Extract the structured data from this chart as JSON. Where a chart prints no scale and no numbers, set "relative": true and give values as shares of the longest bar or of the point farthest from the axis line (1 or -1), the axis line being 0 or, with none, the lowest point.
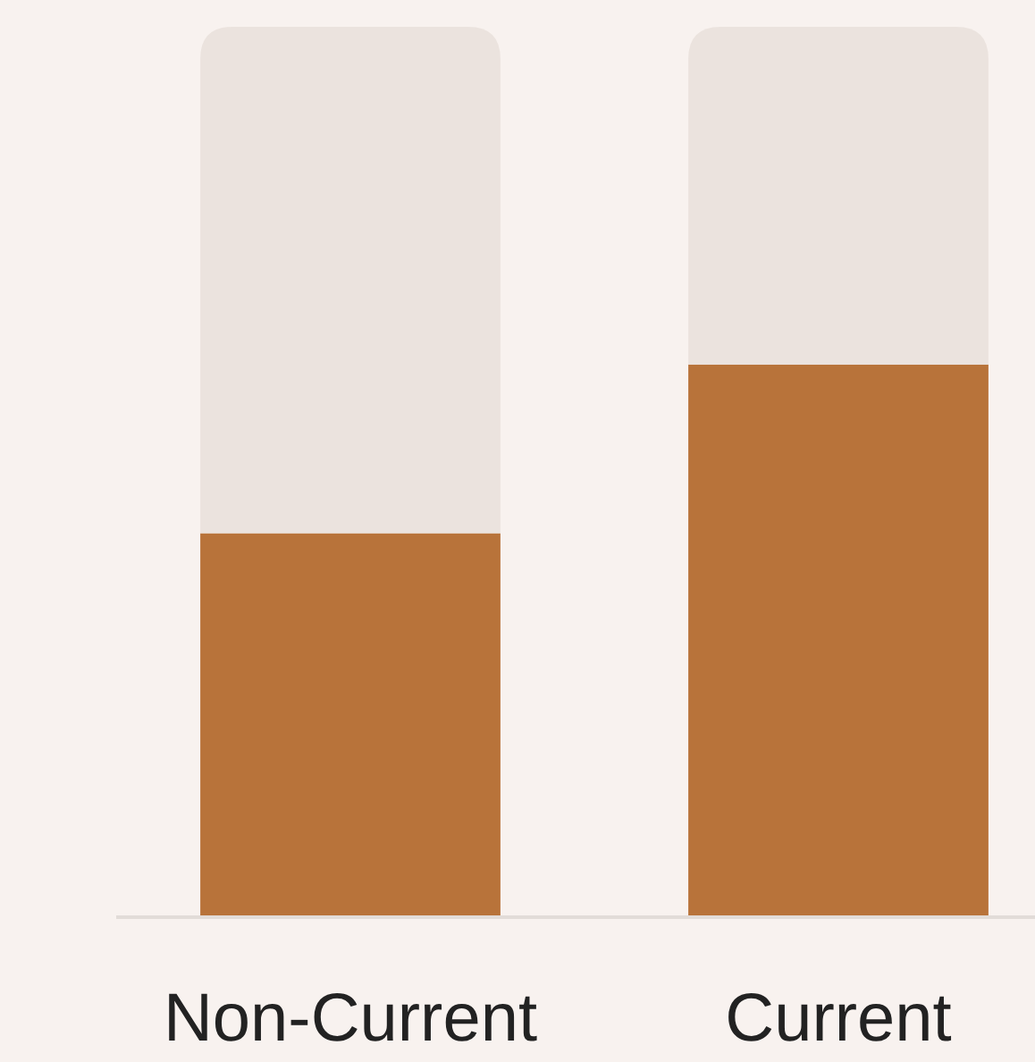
{
  "chart_data": {
    "type": "bar",
    "relative": true,
    "stacked": true,
    "categories": [
      "Non-Current",
      "Current"
    ],
    "series": [
      {
        "color": "#b8733a",
        "values": [
          0.43,
          0.62
        ]
      },
      {
        "color": "#ebe3de",
        "values": [
          0.57,
          0.38
        ]
      }
    ]
  }
}
